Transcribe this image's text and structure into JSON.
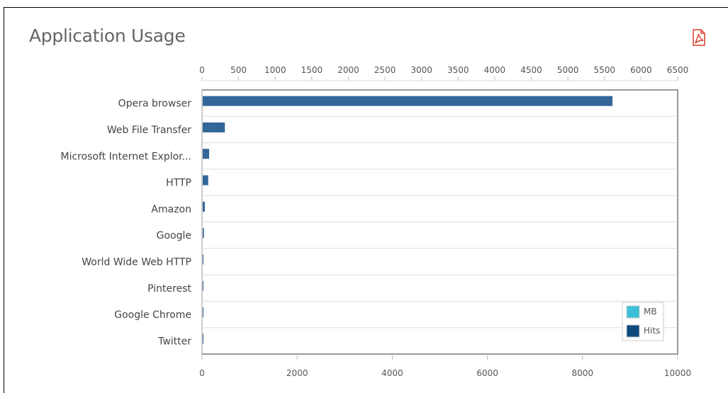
{
  "widget": {
    "title": "Application Usage",
    "export_icon": "pdf-icon"
  },
  "chart_data": {
    "type": "bar",
    "orientation": "horizontal",
    "title": "Application Usage",
    "categories": [
      "Opera browser",
      "Web File Transfer",
      "Microsoft Internet Explor...",
      "HTTP",
      "Amazon",
      "Google",
      "World Wide Web HTTP",
      "Pinterest",
      "Google Chrome",
      "Twitter"
    ],
    "series": [
      {
        "name": "MB",
        "axis": "top",
        "color": "#3cc0d8",
        "values": [
          0,
          0,
          0,
          0,
          0,
          0,
          0,
          0,
          0,
          0
        ]
      },
      {
        "name": "Hits",
        "axis": "bottom",
        "color": "#336699",
        "values": [
          8630,
          480,
          150,
          130,
          60,
          40,
          30,
          20,
          10,
          5
        ]
      }
    ],
    "axes": {
      "top": {
        "min": 0,
        "max": 6500,
        "ticks": [
          0,
          500,
          1000,
          1500,
          2000,
          2500,
          3000,
          3500,
          4000,
          4500,
          5000,
          5500,
          6000,
          6500
        ]
      },
      "bottom": {
        "min": 0,
        "max": 10000,
        "ticks": [
          0,
          2000,
          4000,
          6000,
          8000,
          10000
        ]
      }
    },
    "legend": {
      "position": "bottom-right",
      "items": [
        {
          "label": "MB",
          "color": "#3cc0d8"
        },
        {
          "label": "Hits",
          "color": "#0e4a7c"
        }
      ]
    },
    "grid": "horizontal"
  }
}
